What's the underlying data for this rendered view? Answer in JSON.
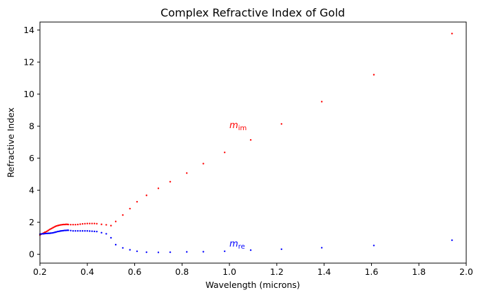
{
  "chart_data": {
    "type": "scatter",
    "title": "Complex Refractive Index of Gold",
    "xlabel": "Wavelength (microns)",
    "ylabel": "Refractive Index",
    "xlim": [
      0.2,
      2.0
    ],
    "ylim": [
      -0.55,
      14.5
    ],
    "xticks": [
      "0.2",
      "0.4",
      "0.6",
      "0.8",
      "1.0",
      "1.2",
      "1.4",
      "1.6",
      "1.8",
      "2.0"
    ],
    "yticks": [
      "0",
      "2",
      "4",
      "6",
      "8",
      "10",
      "12",
      "14"
    ],
    "grid": false,
    "series": [
      {
        "color": "#ff0000",
        "x": [
          0.2,
          0.205,
          0.21,
          0.215,
          0.22,
          0.225,
          0.23,
          0.235,
          0.24,
          0.245,
          0.25,
          0.255,
          0.26,
          0.265,
          0.27,
          0.275,
          0.28,
          0.285,
          0.29,
          0.295,
          0.3,
          0.305,
          0.31,
          0.315,
          0.32,
          0.33,
          0.34,
          0.35,
          0.36,
          0.37,
          0.38,
          0.39,
          0.4,
          0.41,
          0.42,
          0.43,
          0.44,
          0.46,
          0.48,
          0.5,
          0.52,
          0.55,
          0.58,
          0.61,
          0.65,
          0.7,
          0.75,
          0.82,
          0.89,
          0.98,
          1.09,
          1.22,
          1.39,
          1.61,
          1.94
        ],
        "y": [
          1.2,
          1.25,
          1.29,
          1.33,
          1.37,
          1.4,
          1.44,
          1.49,
          1.54,
          1.58,
          1.62,
          1.66,
          1.7,
          1.74,
          1.77,
          1.79,
          1.81,
          1.83,
          1.84,
          1.85,
          1.86,
          1.86,
          1.87,
          1.87,
          1.86,
          1.85,
          1.85,
          1.85,
          1.86,
          1.88,
          1.9,
          1.91,
          1.92,
          1.92,
          1.92,
          1.92,
          1.91,
          1.87,
          1.84,
          1.79,
          2.05,
          2.45,
          2.85,
          3.28,
          3.68,
          4.12,
          4.53,
          5.07,
          5.66,
          6.36,
          7.14,
          8.14,
          9.53,
          11.21,
          13.78
        ]
      },
      {
        "color": "#0000ff",
        "x": [
          0.2,
          0.205,
          0.21,
          0.215,
          0.22,
          0.225,
          0.23,
          0.235,
          0.24,
          0.245,
          0.25,
          0.255,
          0.26,
          0.265,
          0.27,
          0.275,
          0.28,
          0.285,
          0.29,
          0.295,
          0.3,
          0.305,
          0.31,
          0.315,
          0.32,
          0.33,
          0.34,
          0.35,
          0.36,
          0.37,
          0.38,
          0.39,
          0.4,
          0.41,
          0.42,
          0.43,
          0.44,
          0.46,
          0.48,
          0.5,
          0.52,
          0.55,
          0.58,
          0.61,
          0.65,
          0.7,
          0.75,
          0.82,
          0.89,
          0.98,
          1.09,
          1.22,
          1.39,
          1.61,
          1.94
        ],
        "y": [
          1.26,
          1.27,
          1.28,
          1.28,
          1.29,
          1.3,
          1.3,
          1.31,
          1.31,
          1.32,
          1.33,
          1.34,
          1.36,
          1.38,
          1.4,
          1.42,
          1.43,
          1.45,
          1.46,
          1.47,
          1.48,
          1.49,
          1.49,
          1.5,
          1.5,
          1.48,
          1.46,
          1.46,
          1.46,
          1.46,
          1.46,
          1.46,
          1.46,
          1.45,
          1.44,
          1.43,
          1.42,
          1.35,
          1.28,
          1.03,
          0.6,
          0.4,
          0.28,
          0.19,
          0.13,
          0.12,
          0.13,
          0.15,
          0.16,
          0.19,
          0.26,
          0.32,
          0.41,
          0.55,
          0.88
        ]
      }
    ],
    "annotations": [
      {
        "base": "m",
        "sub": "im",
        "x": 1.0,
        "y": 8.05,
        "color": "#ff0000"
      },
      {
        "base": "m",
        "sub": "re",
        "x": 1.0,
        "y": 0.65,
        "color": "#0000ff"
      }
    ]
  }
}
